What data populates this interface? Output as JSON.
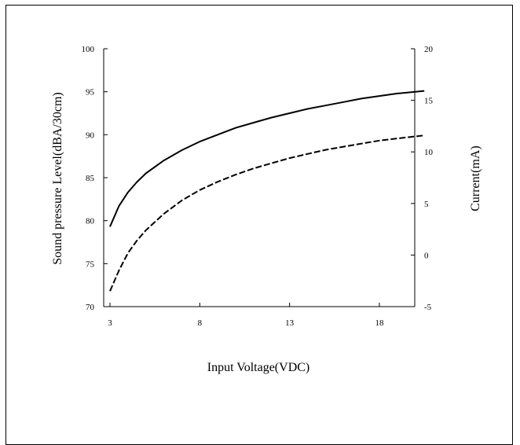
{
  "chart_data": {
    "type": "line",
    "title": "",
    "xlabel": "Input Voltage(VDC)",
    "ylabel": "Sound pressure Level(dBA/30cm)",
    "y2label": "Current(mA)",
    "xlim": [
      3,
      20.5
    ],
    "ylim": [
      70,
      100
    ],
    "y2lim": [
      -5,
      20
    ],
    "x_ticks": [
      "3",
      "8",
      "13",
      "18"
    ],
    "y_ticks": [
      "70",
      "75",
      "80",
      "85",
      "90",
      "95",
      "100"
    ],
    "y2_ticks": [
      "-5",
      "0",
      "5",
      "10",
      "15",
      "20"
    ],
    "grid": false,
    "series": [
      {
        "axis": "left",
        "style": "solid",
        "x": [
          3,
          3.5,
          4,
          4.5,
          5,
          6,
          7,
          8,
          9,
          10,
          11,
          12,
          13,
          14,
          15,
          16,
          17,
          18,
          19,
          20,
          20.5
        ],
        "y": [
          79.3,
          81.7,
          83.3,
          84.5,
          85.5,
          87.0,
          88.2,
          89.2,
          90.0,
          90.8,
          91.4,
          92.0,
          92.5,
          93.0,
          93.4,
          93.8,
          94.2,
          94.5,
          94.8,
          95.0,
          95.1
        ]
      },
      {
        "axis": "right",
        "style": "dashed",
        "x": [
          3,
          3.5,
          4,
          4.5,
          5,
          6,
          7,
          8,
          9,
          10,
          11,
          12,
          13,
          14,
          15,
          16,
          17,
          18,
          19,
          20,
          20.5
        ],
        "y": [
          -3.5,
          -1.5,
          0.2,
          1.4,
          2.4,
          4.0,
          5.3,
          6.3,
          7.1,
          7.8,
          8.4,
          8.9,
          9.4,
          9.8,
          10.2,
          10.5,
          10.8,
          11.1,
          11.3,
          11.5,
          11.6
        ]
      }
    ]
  }
}
